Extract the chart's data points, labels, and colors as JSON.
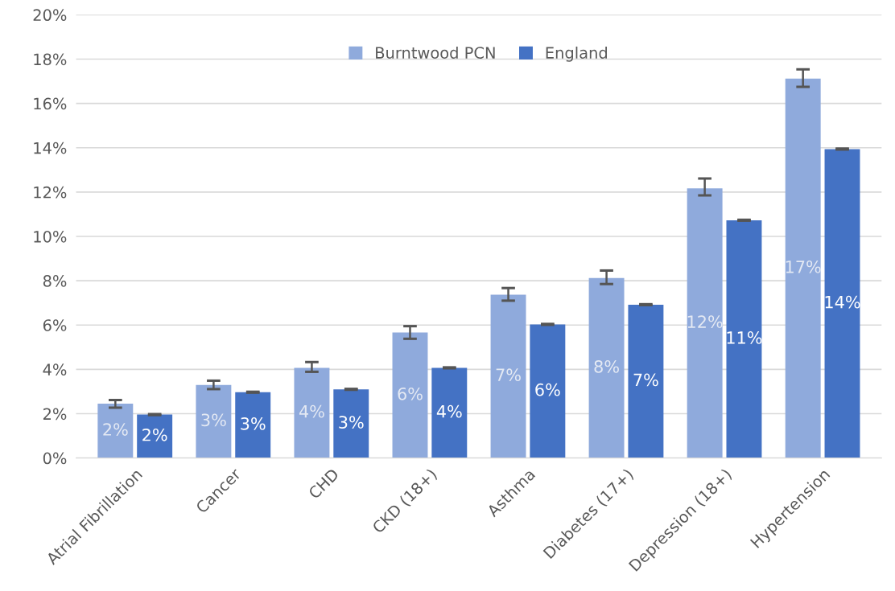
{
  "chart_data": {
    "type": "bar",
    "categories": [
      "Atrial Fibrillation",
      "Cancer",
      "CHD",
      "CKD (18+)",
      "Asthma",
      "Diabetes (17+)",
      "Depression (18+)",
      "Hypertension"
    ],
    "series": [
      {
        "name": "Burntwood PCN",
        "color": "#8faadc",
        "values": [
          2.45,
          3.3,
          4.07,
          5.66,
          7.37,
          8.12,
          12.17,
          17.12
        ],
        "errors": [
          [
            2.27,
            2.62
          ],
          [
            3.11,
            3.49
          ],
          [
            3.89,
            4.33
          ],
          [
            5.38,
            5.95
          ],
          [
            7.1,
            7.67
          ],
          [
            7.85,
            8.46
          ],
          [
            11.85,
            12.61
          ],
          [
            16.75,
            17.54
          ]
        ],
        "value_labels": [
          "2%",
          "3%",
          "4%",
          "6%",
          "7%",
          "8%",
          "12%",
          "17%"
        ]
      },
      {
        "name": "England",
        "color": "#4472c4",
        "values": [
          1.96,
          2.97,
          3.1,
          4.07,
          6.03,
          6.92,
          10.73,
          13.94
        ],
        "errors": [
          [
            1.94,
            1.98
          ],
          [
            2.95,
            2.99
          ],
          [
            3.08,
            3.12
          ],
          [
            4.05,
            4.09
          ],
          [
            6.01,
            6.05
          ],
          [
            6.9,
            6.94
          ],
          [
            10.71,
            10.75
          ],
          [
            13.92,
            13.96
          ]
        ],
        "value_labels": [
          "2%",
          "3%",
          "3%",
          "4%",
          "6%",
          "7%",
          "11%",
          "14%"
        ]
      }
    ],
    "ylim": [
      0,
      20
    ],
    "yticks": [
      {
        "value": 0,
        "label": "0%"
      },
      {
        "value": 2,
        "label": "2%"
      },
      {
        "value": 4,
        "label": "4%"
      },
      {
        "value": 6,
        "label": "6%"
      },
      {
        "value": 8,
        "label": "8%"
      },
      {
        "value": 10,
        "label": "10%"
      },
      {
        "value": 12,
        "label": "12%"
      },
      {
        "value": 14,
        "label": "14%"
      },
      {
        "value": 16,
        "label": "16%"
      },
      {
        "value": 18,
        "label": "18%"
      },
      {
        "value": 20,
        "label": "20%"
      }
    ],
    "grid": "y",
    "legend": "top"
  }
}
